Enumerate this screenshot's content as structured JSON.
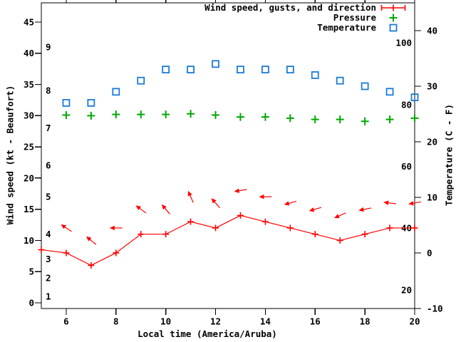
{
  "chart_data": {
    "type": "line",
    "title": "",
    "xlabel": "Local time (America/Aruba)",
    "ylabel": "Wind speed (kt - Beaufort)",
    "y2label": "Temperature (C - F)",
    "grid": false,
    "legend": {
      "position": "top-right",
      "entries": [
        "Wind speed, gusts, and direction",
        "Pressure",
        "Temperature"
      ]
    },
    "x_axis": {
      "range": [
        5,
        20
      ],
      "tick_labels": [
        "6",
        "8",
        "10",
        "12",
        "14",
        "16",
        "18",
        "20"
      ],
      "tick_hours": [
        6,
        8,
        10,
        12,
        14,
        16,
        18,
        20
      ]
    },
    "y_axis_wind": {
      "range_kt": [
        0,
        45
      ],
      "ticks_kt": [
        0,
        5,
        10,
        15,
        20,
        25,
        30,
        35,
        40,
        45
      ],
      "beaufort_inner_labels": [
        {
          "beaufort": "1",
          "kt": 1
        },
        {
          "beaufort": "2",
          "kt": 4
        },
        {
          "beaufort": "3",
          "kt": 7
        },
        {
          "beaufort": "4",
          "kt": 11
        },
        {
          "beaufort": "5",
          "kt": 17
        },
        {
          "beaufort": "6",
          "kt": 22
        },
        {
          "beaufort": "7",
          "kt": 28
        },
        {
          "beaufort": "8",
          "kt": 34
        },
        {
          "beaufort": "9",
          "kt": 41
        }
      ]
    },
    "y_axis_temp": {
      "range_c": [
        -10,
        40
      ],
      "ticks_c": [
        -10,
        0,
        10,
        20,
        30,
        40
      ],
      "fahrenheit_inner_labels": [
        20,
        40,
        60,
        80,
        100
      ]
    },
    "series": [
      {
        "name": "Wind speed",
        "type": "line",
        "marker": "plus",
        "color": "#ff0000",
        "hours": [
          5,
          6,
          7,
          8,
          9,
          10,
          11,
          12,
          13,
          14,
          15,
          16,
          17,
          18,
          19,
          20
        ],
        "values_kt": [
          8.5,
          8,
          6,
          8,
          11,
          11,
          13,
          12,
          14,
          13,
          12,
          11,
          10,
          11,
          12,
          12
        ]
      },
      {
        "name": "Wind gusts and direction",
        "type": "arrows",
        "color": "#ff0000",
        "hours": [
          6,
          7,
          8,
          9,
          10,
          11,
          12,
          13,
          14,
          15,
          16,
          17,
          18,
          19,
          20
        ],
        "values_kt": [
          12,
          10,
          12,
          15,
          15,
          17,
          16,
          18,
          17,
          16,
          15,
          14,
          15,
          16,
          16
        ],
        "arrow_angles_deg": [
          147,
          141,
          180,
          143,
          130,
          114,
          131,
          189,
          180,
          195,
          196,
          204,
          191,
          173,
          190
        ]
      },
      {
        "name": "Pressure",
        "type": "points",
        "marker": "plus",
        "color": "#00a800",
        "hours": [
          6,
          7,
          8,
          9,
          10,
          11,
          12,
          13,
          14,
          15,
          16,
          17,
          18,
          19,
          20
        ],
        "values_on_wind_axis": [
          30.1,
          30.0,
          30.2,
          30.2,
          30.2,
          30.3,
          30.1,
          29.8,
          29.8,
          29.6,
          29.4,
          29.4,
          29.1,
          29.4,
          29.6
        ]
      },
      {
        "name": "Temperature",
        "type": "points",
        "marker": "open-square",
        "color": "#1b7cd6",
        "hours": [
          6,
          7,
          8,
          9,
          10,
          11,
          12,
          13,
          14,
          15,
          16,
          17,
          18,
          19,
          20
        ],
        "values_c": [
          27,
          27,
          29,
          31,
          33,
          33,
          34,
          33,
          33,
          33,
          32,
          31,
          30,
          29,
          28
        ]
      }
    ]
  }
}
